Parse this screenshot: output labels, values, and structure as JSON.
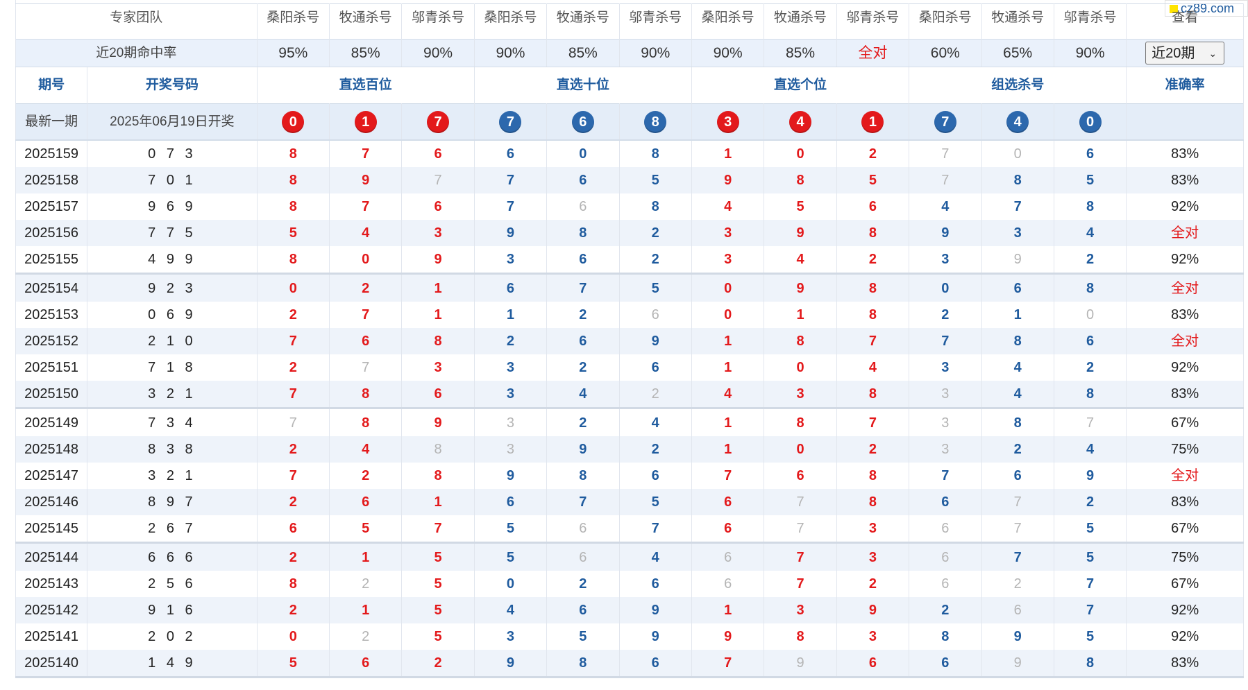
{
  "logo": {
    "text": "cz89.com"
  },
  "team_row": {
    "label": "专家团队",
    "experts": [
      "桑阳杀号",
      "牧通杀号",
      "邬青杀号",
      "桑阳杀号",
      "牧通杀号",
      "邬青杀号",
      "桑阳杀号",
      "牧通杀号",
      "邬青杀号",
      "桑阳杀号",
      "牧通杀号",
      "邬青杀号"
    ],
    "view_label": "查看"
  },
  "rate_row": {
    "label": "近20期命中率",
    "rates": [
      "95%",
      "85%",
      "90%",
      "90%",
      "85%",
      "90%",
      "90%",
      "85%",
      "全对",
      "60%",
      "65%",
      "90%"
    ],
    "period_select": {
      "value": "近20期"
    }
  },
  "header": {
    "period": "期号",
    "draw": "开奖号码",
    "groups": [
      "直选百位",
      "直选十位",
      "直选个位",
      "组选杀号"
    ],
    "accuracy": "准确率"
  },
  "latest": {
    "label": "最新一期",
    "date": "2025年06月19日开奖",
    "balls": [
      {
        "n": "0",
        "c": "red"
      },
      {
        "n": "1",
        "c": "red"
      },
      {
        "n": "7",
        "c": "red"
      },
      {
        "n": "7",
        "c": "blue"
      },
      {
        "n": "6",
        "c": "blue"
      },
      {
        "n": "8",
        "c": "blue"
      },
      {
        "n": "3",
        "c": "red"
      },
      {
        "n": "4",
        "c": "red"
      },
      {
        "n": "1",
        "c": "red"
      },
      {
        "n": "7",
        "c": "blue"
      },
      {
        "n": "4",
        "c": "blue"
      },
      {
        "n": "0",
        "c": "blue"
      }
    ]
  },
  "rows": [
    {
      "period": "2025159",
      "draw": "0 7 3",
      "cells": [
        "8",
        "7",
        "6",
        "6",
        "0",
        "8",
        "1",
        "0",
        "2",
        "7",
        "0",
        "6"
      ],
      "miss": [
        9,
        10
      ],
      "acc": "83%"
    },
    {
      "period": "2025158",
      "draw": "7 0 1",
      "cells": [
        "8",
        "9",
        "7",
        "7",
        "6",
        "5",
        "9",
        "8",
        "5",
        "7",
        "8",
        "5"
      ],
      "miss": [
        2,
        9
      ],
      "acc": "83%"
    },
    {
      "period": "2025157",
      "draw": "9 6 9",
      "cells": [
        "8",
        "7",
        "6",
        "7",
        "6",
        "8",
        "4",
        "5",
        "6",
        "4",
        "7",
        "8"
      ],
      "miss": [
        4
      ],
      "acc": "92%"
    },
    {
      "period": "2025156",
      "draw": "7 7 5",
      "cells": [
        "5",
        "4",
        "3",
        "9",
        "8",
        "2",
        "3",
        "9",
        "8",
        "9",
        "3",
        "4"
      ],
      "miss": [],
      "acc": "全对"
    },
    {
      "period": "2025155",
      "draw": "4 9 9",
      "cells": [
        "8",
        "0",
        "9",
        "3",
        "6",
        "2",
        "3",
        "4",
        "2",
        "3",
        "9",
        "2"
      ],
      "miss": [
        10
      ],
      "acc": "92%"
    },
    {
      "period": "2025154",
      "draw": "9 2 3",
      "cells": [
        "0",
        "2",
        "1",
        "6",
        "7",
        "5",
        "0",
        "9",
        "8",
        "0",
        "6",
        "8"
      ],
      "miss": [],
      "acc": "全对"
    },
    {
      "period": "2025153",
      "draw": "0 6 9",
      "cells": [
        "2",
        "7",
        "1",
        "1",
        "2",
        "6",
        "0",
        "1",
        "8",
        "2",
        "1",
        "0"
      ],
      "miss": [
        5,
        11
      ],
      "acc": "83%"
    },
    {
      "period": "2025152",
      "draw": "2 1 0",
      "cells": [
        "7",
        "6",
        "8",
        "2",
        "6",
        "9",
        "1",
        "8",
        "7",
        "7",
        "8",
        "6"
      ],
      "miss": [],
      "acc": "全对"
    },
    {
      "period": "2025151",
      "draw": "7 1 8",
      "cells": [
        "2",
        "7",
        "3",
        "3",
        "2",
        "6",
        "1",
        "0",
        "4",
        "3",
        "4",
        "2"
      ],
      "miss": [
        1
      ],
      "acc": "92%"
    },
    {
      "period": "2025150",
      "draw": "3 2 1",
      "cells": [
        "7",
        "8",
        "6",
        "3",
        "4",
        "2",
        "4",
        "3",
        "8",
        "3",
        "4",
        "8"
      ],
      "miss": [
        5,
        9
      ],
      "acc": "83%"
    },
    {
      "period": "2025149",
      "draw": "7 3 4",
      "cells": [
        "7",
        "8",
        "9",
        "3",
        "2",
        "4",
        "1",
        "8",
        "7",
        "3",
        "8",
        "7"
      ],
      "miss": [
        0,
        3,
        9,
        11
      ],
      "acc": "67%"
    },
    {
      "period": "2025148",
      "draw": "8 3 8",
      "cells": [
        "2",
        "4",
        "8",
        "3",
        "9",
        "2",
        "1",
        "0",
        "2",
        "3",
        "2",
        "4"
      ],
      "miss": [
        2,
        3,
        9
      ],
      "acc": "75%"
    },
    {
      "period": "2025147",
      "draw": "3 2 1",
      "cells": [
        "7",
        "2",
        "8",
        "9",
        "8",
        "6",
        "7",
        "6",
        "8",
        "7",
        "6",
        "9"
      ],
      "miss": [],
      "acc": "全对"
    },
    {
      "period": "2025146",
      "draw": "8 9 7",
      "cells": [
        "2",
        "6",
        "1",
        "6",
        "7",
        "5",
        "6",
        "7",
        "8",
        "6",
        "7",
        "2"
      ],
      "miss": [
        7,
        10
      ],
      "acc": "83%"
    },
    {
      "period": "2025145",
      "draw": "2 6 7",
      "cells": [
        "6",
        "5",
        "7",
        "5",
        "6",
        "7",
        "6",
        "7",
        "3",
        "6",
        "7",
        "5"
      ],
      "miss": [
        4,
        7,
        9,
        10
      ],
      "acc": "67%"
    },
    {
      "period": "2025144",
      "draw": "6 6 6",
      "cells": [
        "2",
        "1",
        "5",
        "5",
        "6",
        "4",
        "6",
        "7",
        "3",
        "6",
        "7",
        "5"
      ],
      "miss": [
        4,
        6,
        9
      ],
      "acc": "75%"
    },
    {
      "period": "2025143",
      "draw": "2 5 6",
      "cells": [
        "8",
        "2",
        "5",
        "0",
        "2",
        "6",
        "6",
        "7",
        "2",
        "6",
        "2",
        "7"
      ],
      "miss": [
        1,
        6,
        9,
        10
      ],
      "acc": "67%"
    },
    {
      "period": "2025142",
      "draw": "9 1 6",
      "cells": [
        "2",
        "1",
        "5",
        "4",
        "6",
        "9",
        "1",
        "3",
        "9",
        "2",
        "6",
        "7"
      ],
      "miss": [
        10
      ],
      "acc": "92%"
    },
    {
      "period": "2025141",
      "draw": "2 0 2",
      "cells": [
        "0",
        "2",
        "5",
        "3",
        "5",
        "9",
        "9",
        "8",
        "3",
        "8",
        "9",
        "5"
      ],
      "miss": [
        1
      ],
      "acc": "92%"
    },
    {
      "period": "2025140",
      "draw": "1 4 9",
      "cells": [
        "5",
        "6",
        "2",
        "9",
        "8",
        "6",
        "7",
        "9",
        "6",
        "6",
        "9",
        "8"
      ],
      "miss": [
        7,
        10
      ],
      "acc": "83%"
    }
  ],
  "colors": {
    "red": "#e3191b",
    "blue": "#1f5b9e",
    "miss": "#b4b4b4",
    "header_bg": "#eaf1fb"
  }
}
